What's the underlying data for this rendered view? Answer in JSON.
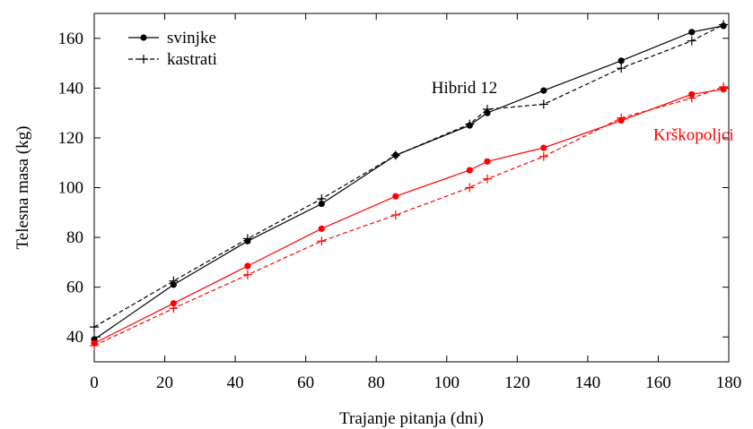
{
  "chart_data": {
    "type": "line",
    "xlabel": "Trajanje pitanja (dni)",
    "ylabel": "Telesna masa (kg)",
    "xlim": [
      0,
      180
    ],
    "ylim": [
      30,
      170
    ],
    "xticks": [
      0,
      20,
      40,
      60,
      80,
      100,
      120,
      140,
      160,
      180
    ],
    "yticks": [
      40,
      60,
      80,
      100,
      120,
      140,
      160
    ],
    "xtick_labels": [
      "0",
      "20",
      "40",
      "60",
      "80",
      "100",
      "120",
      "140",
      "160",
      "180"
    ],
    "ytick_labels": [
      "40",
      "60",
      "80",
      "100",
      "120",
      "140",
      "160"
    ],
    "grid": false,
    "legend_position": "top-left",
    "legend": [
      {
        "label": "svinjke",
        "style": "solid",
        "marker": "circle"
      },
      {
        "label": "kastrati",
        "style": "dashed",
        "marker": "plus"
      }
    ],
    "annotations": [
      {
        "text": "Hibrid 12",
        "color": "#000000",
        "x": 105,
        "y": 138
      },
      {
        "text": "Krškopoljci",
        "color": "#ff0000",
        "x": 170,
        "y": 119
      }
    ],
    "series": [
      {
        "name": "svinjke",
        "group": "Hibrid 12",
        "color": "#000000",
        "style": "solid",
        "marker": "circle",
        "x": [
          0,
          22.5,
          43.5,
          64.5,
          85.5,
          106.5,
          111.5,
          127.5,
          149.5,
          169.5,
          178.5
        ],
        "y": [
          39,
          61,
          78.5,
          93.5,
          113,
          125,
          130,
          139,
          151,
          162.5,
          165
        ]
      },
      {
        "name": "kastrati",
        "group": "Hibrid 12",
        "color": "#000000",
        "style": "dashed",
        "marker": "plus",
        "x": [
          0,
          22.5,
          43.5,
          64.5,
          85.5,
          106.5,
          111.5,
          127.5,
          149.5,
          169.5,
          178.5
        ],
        "y": [
          44,
          62.5,
          79.5,
          95.5,
          113,
          125.5,
          131.5,
          133.5,
          148,
          159,
          165.5
        ]
      },
      {
        "name": "svinjke",
        "group": "Krškopoljci",
        "color": "#ff0000",
        "style": "solid",
        "marker": "circle",
        "x": [
          0,
          22.5,
          43.5,
          64.5,
          85.5,
          106.5,
          111.5,
          127.5,
          149.5,
          169.5,
          178.5
        ],
        "y": [
          37.5,
          53.5,
          68.5,
          83.5,
          96.5,
          107,
          110.5,
          116,
          127,
          137.5,
          139.5
        ]
      },
      {
        "name": "kastrati",
        "group": "Krškopoljci",
        "color": "#ff0000",
        "style": "dashed",
        "marker": "plus",
        "x": [
          0,
          22.5,
          43.5,
          64.5,
          85.5,
          106.5,
          111.5,
          127.5,
          149.5,
          169.5,
          178.5
        ],
        "y": [
          36.5,
          51.5,
          65,
          78.5,
          89,
          100,
          103.5,
          112.5,
          128,
          136,
          140.5
        ]
      }
    ]
  }
}
